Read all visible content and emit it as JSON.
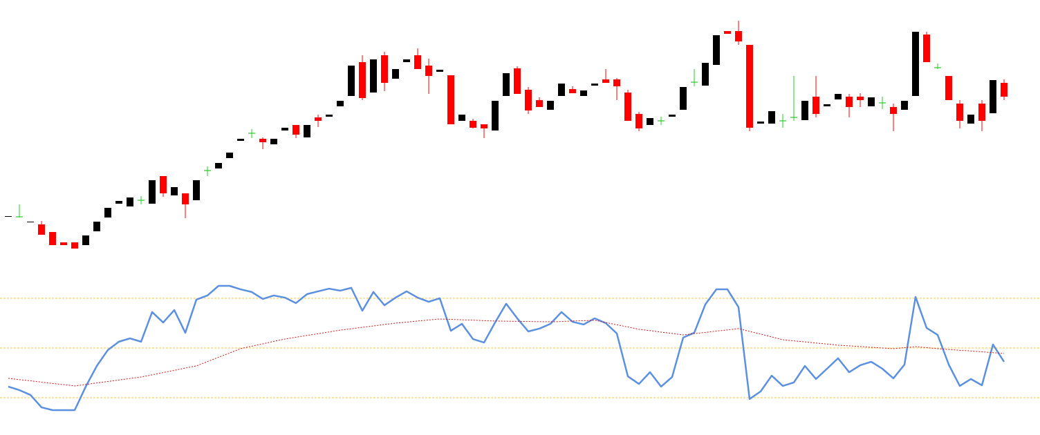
{
  "chart_data": [
    {
      "type": "candlestick",
      "ylim": [
        0,
        350
      ],
      "up_color": "#000000",
      "down_color": "#ff0000",
      "doji_color": "#22cc22",
      "open": [
        66,
        66,
        58,
        55,
        44,
        29,
        29,
        25,
        45,
        65,
        85,
        81,
        90,
        85,
        125,
        97,
        100,
        90,
        133,
        136,
        151,
        176,
        187,
        179,
        171,
        191,
        199,
        181,
        210,
        211,
        226,
        241,
        290,
        246,
        300,
        266,
        290,
        300,
        285,
        276,
        271,
        205,
        205,
        200,
        191,
        241,
        281,
        250,
        235,
        221,
        241,
        251,
        241,
        256,
        265,
        265,
        246,
        215,
        199,
        205,
        211,
        221,
        261,
        256,
        286,
        335,
        335,
        315,
        201,
        201,
        205,
        210,
        206,
        240,
        226,
        236,
        240,
        240,
        226,
        231,
        225,
        221,
        241,
        330,
        282,
        270,
        230,
        201,
        230,
        216,
        260
      ],
      "high": [
        67,
        84,
        59,
        60,
        44,
        29,
        29,
        39,
        59,
        79,
        89,
        94,
        96,
        119,
        125,
        109,
        100,
        119,
        139,
        144,
        159,
        179,
        193,
        181,
        179,
        195,
        199,
        199,
        214,
        214,
        234,
        285,
        300,
        294,
        305,
        280,
        294,
        310,
        295,
        279,
        271,
        214,
        208,
        200,
        234,
        274,
        284,
        254,
        239,
        234,
        259,
        255,
        249,
        259,
        280,
        267,
        250,
        218,
        209,
        211,
        214,
        254,
        280,
        289,
        329,
        335,
        350,
        315,
        204,
        219,
        215,
        270,
        234,
        270,
        229,
        244,
        244,
        245,
        239,
        240,
        230,
        234,
        334,
        334,
        288,
        270,
        235,
        214,
        235,
        264,
        265
      ],
      "low": [
        66,
        65,
        58,
        40,
        25,
        25,
        20,
        25,
        45,
        65,
        85,
        81,
        84,
        85,
        95,
        97,
        64,
        90,
        125,
        136,
        151,
        176,
        180,
        164,
        171,
        191,
        180,
        181,
        196,
        211,
        226,
        241,
        235,
        246,
        248,
        266,
        290,
        280,
        244,
        276,
        200,
        205,
        194,
        180,
        191,
        241,
        244,
        215,
        225,
        221,
        241,
        245,
        241,
        256,
        260,
        235,
        205,
        190,
        199,
        199,
        211,
        221,
        255,
        256,
        286,
        331,
        315,
        190,
        201,
        201,
        195,
        205,
        206,
        210,
        226,
        236,
        210,
        225,
        226,
        222,
        190,
        221,
        241,
        290,
        280,
        235,
        194,
        201,
        190,
        216,
        235
      ],
      "close": [
        67,
        66,
        59,
        40,
        25,
        25,
        20,
        39,
        59,
        79,
        89,
        94,
        90,
        119,
        100,
        109,
        84,
        119,
        133,
        144,
        159,
        179,
        187,
        174,
        179,
        195,
        185,
        199,
        205,
        214,
        234,
        285,
        238,
        294,
        260,
        280,
        294,
        280,
        270,
        279,
        200,
        214,
        195,
        194,
        234,
        274,
        244,
        220,
        225,
        234,
        259,
        245,
        249,
        259,
        260,
        255,
        205,
        194,
        209,
        205,
        214,
        254,
        261,
        289,
        329,
        331,
        320,
        195,
        204,
        219,
        205,
        210,
        234,
        215,
        229,
        244,
        225,
        235,
        239,
        231,
        215,
        234,
        334,
        290,
        282,
        235,
        205,
        214,
        205,
        264,
        240
      ]
    },
    {
      "type": "line",
      "ylim": [
        0,
        100
      ],
      "levels": [
        20,
        50,
        80
      ],
      "level_color": "#f5c542",
      "series": [
        {
          "color": "#5b8fe0",
          "values": [
            26.7,
            24.6,
            21.7,
            14.2,
            12.5,
            12.5,
            12.5,
            26.7,
            39.2,
            48.8,
            53.8,
            55.8,
            53.8,
            71.7,
            65.4,
            72.9,
            59.2,
            79.2,
            81.7,
            87.5,
            87.5,
            85.4,
            83.8,
            79.6,
            81.7,
            80.4,
            77.1,
            82.5,
            84.2,
            85.8,
            84.6,
            86.3,
            72.5,
            83.8,
            75.8,
            80.4,
            84.2,
            80.4,
            77.9,
            80.0,
            60.4,
            64.6,
            55.4,
            53.3,
            65.4,
            76.7,
            67.9,
            60.0,
            61.7,
            64.6,
            71.7,
            65.8,
            64.2,
            67.9,
            65.0,
            58.8,
            32.9,
            28.3,
            35.4,
            26.7,
            32.5,
            56.3,
            59.2,
            76.3,
            85.4,
            85.4,
            74.6,
            19.2,
            23.8,
            33.3,
            27.1,
            29.2,
            39.2,
            31.3,
            37.5,
            43.8,
            35.4,
            39.6,
            41.7,
            37.5,
            31.7,
            40.0,
            80.8,
            62.1,
            57.9,
            40.0,
            27.1,
            31.3,
            27.5,
            52.1,
            41.7
          ]
        },
        {
          "color": "#cc1111",
          "dotted": true,
          "values": [
            31.7,
            30.9,
            30.2,
            29.4,
            28.6,
            27.9,
            27.1,
            28.0,
            28.9,
            29.8,
            30.7,
            31.6,
            32.5,
            33.8,
            35.2,
            36.5,
            37.9,
            39.2,
            41.8,
            44.4,
            47.0,
            49.6,
            51.1,
            52.5,
            54.0,
            55.4,
            56.5,
            57.6,
            58.6,
            59.7,
            60.8,
            61.6,
            62.5,
            63.3,
            64.2,
            65.0,
            65.6,
            66.3,
            66.9,
            67.5,
            67.3,
            67.0,
            66.8,
            66.5,
            66.3,
            66.2,
            66.1,
            66.0,
            65.9,
            65.8,
            66.0,
            66.3,
            66.5,
            66.7,
            65.4,
            64.0,
            62.7,
            61.3,
            60.5,
            59.6,
            58.8,
            57.9,
            58.7,
            59.4,
            60.2,
            60.9,
            61.7,
            60.0,
            58.4,
            56.7,
            55.0,
            54.3,
            53.7,
            53.0,
            52.4,
            51.7,
            51.3,
            50.9,
            50.4,
            50.0,
            49.6,
            50.2,
            50.8,
            50.2,
            49.6,
            49.1,
            48.6,
            48.2,
            47.7,
            47.2,
            46.7
          ]
        }
      ]
    }
  ]
}
